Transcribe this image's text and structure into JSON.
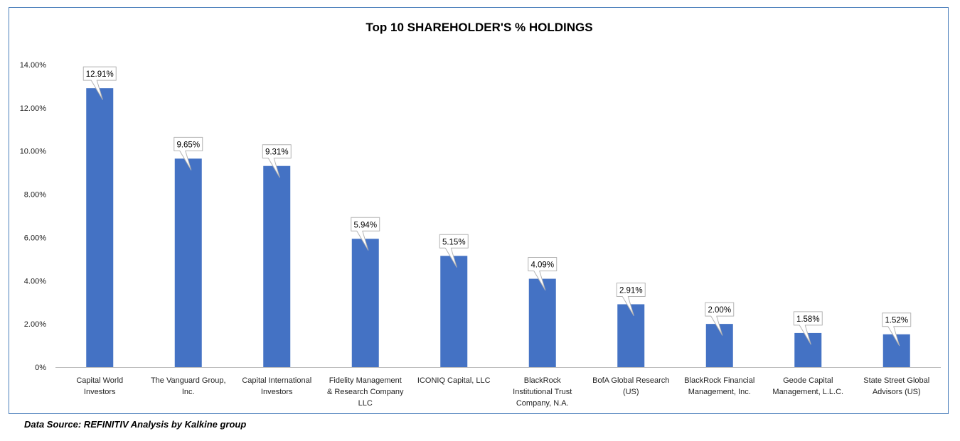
{
  "chart_data": {
    "type": "bar",
    "title": "Top 10 SHAREHOLDER'S % HOLDINGS",
    "xlabel": "",
    "ylabel": "",
    "ylim": [
      0,
      14
    ],
    "yticks": [
      "0%",
      "2.00%",
      "4.00%",
      "6.00%",
      "8.00%",
      "10.00%",
      "12.00%",
      "14.00%"
    ],
    "categories": [
      [
        "Capital World",
        "Investors"
      ],
      [
        "The Vanguard Group,",
        "Inc."
      ],
      [
        "Capital International",
        "Investors"
      ],
      [
        "Fidelity Management",
        "& Research Company",
        "LLC"
      ],
      [
        "ICONIQ Capital, LLC"
      ],
      [
        "BlackRock",
        "Institutional Trust",
        "Company, N.A."
      ],
      [
        "BofA Global Research",
        "(US)"
      ],
      [
        "BlackRock Financial",
        "Management, Inc."
      ],
      [
        "Geode Capital",
        "Management, L.L.C."
      ],
      [
        "State Street Global",
        "Advisors (US)"
      ]
    ],
    "values": [
      12.91,
      9.65,
      9.31,
      5.94,
      5.15,
      4.09,
      2.91,
      2.0,
      1.58,
      1.52
    ],
    "data_labels": [
      "12.91%",
      "9.65%",
      "9.31%",
      "5.94%",
      "5.15%",
      "4.09%",
      "2.91%",
      "2.00%",
      "1.58%",
      "1.52%"
    ],
    "bar_color": "#4472c4",
    "grid": false,
    "legend": "none"
  },
  "footnote": "Data Source: REFINITIV Analysis by Kalkine group"
}
